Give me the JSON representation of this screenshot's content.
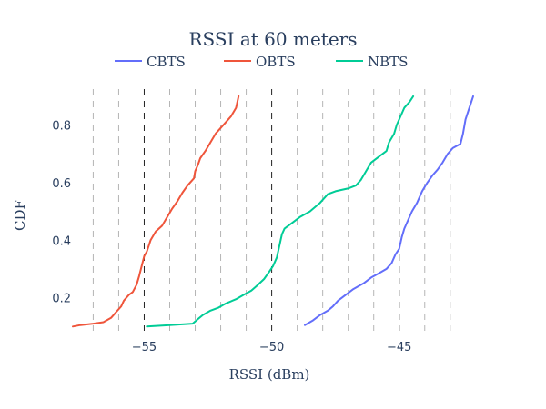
{
  "chart_data": {
    "type": "line",
    "title": "RSSI at 60 meters",
    "xlabel": "RSSI (dBm)",
    "ylabel": "CDF",
    "xlim": [
      -57.8,
      -42.1
    ],
    "ylim": [
      0.085,
      0.925
    ],
    "x_ticks": [
      -55,
      -50,
      -45
    ],
    "x_tick_labels": [
      "−55",
      "−50",
      "−45"
    ],
    "y_ticks": [
      0.2,
      0.4,
      0.6,
      0.8
    ],
    "y_tick_labels": [
      "0.2",
      "0.4",
      "0.6",
      "0.8"
    ],
    "grid": false,
    "vertical_reference_lines": {
      "dashed_black": [
        -55,
        -50,
        -45
      ],
      "dashed_gray": [
        -57,
        -56,
        -54,
        -53,
        -52,
        -51,
        -49,
        -48,
        -47,
        -46,
        -44,
        -43
      ]
    },
    "legend_position": "top-center",
    "series": [
      {
        "name": "CBTS",
        "color": "#636efa",
        "points": [
          [
            -48.7,
            0.105
          ],
          [
            -48.4,
            0.12
          ],
          [
            -48.1,
            0.14
          ],
          [
            -47.8,
            0.155
          ],
          [
            -47.6,
            0.17
          ],
          [
            -47.4,
            0.19
          ],
          [
            -47.1,
            0.21
          ],
          [
            -46.8,
            0.23
          ],
          [
            -46.4,
            0.25
          ],
          [
            -46.1,
            0.27
          ],
          [
            -45.8,
            0.285
          ],
          [
            -45.5,
            0.3
          ],
          [
            -45.3,
            0.32
          ],
          [
            -45.15,
            0.35
          ],
          [
            -45.0,
            0.37
          ],
          [
            -44.9,
            0.41
          ],
          [
            -44.8,
            0.44
          ],
          [
            -44.65,
            0.47
          ],
          [
            -44.5,
            0.5
          ],
          [
            -44.3,
            0.53
          ],
          [
            -44.1,
            0.57
          ],
          [
            -43.9,
            0.6
          ],
          [
            -43.7,
            0.625
          ],
          [
            -43.5,
            0.645
          ],
          [
            -43.3,
            0.67
          ],
          [
            -43.1,
            0.7
          ],
          [
            -42.9,
            0.72
          ],
          [
            -42.6,
            0.735
          ],
          [
            -42.5,
            0.77
          ],
          [
            -42.4,
            0.82
          ],
          [
            -42.25,
            0.86
          ],
          [
            -42.1,
            0.9
          ]
        ]
      },
      {
        "name": "OBTS",
        "color": "#ef553b",
        "points": [
          [
            -57.8,
            0.1
          ],
          [
            -57.5,
            0.105
          ],
          [
            -57.0,
            0.11
          ],
          [
            -56.6,
            0.115
          ],
          [
            -56.3,
            0.13
          ],
          [
            -56.1,
            0.15
          ],
          [
            -55.9,
            0.17
          ],
          [
            -55.8,
            0.19
          ],
          [
            -55.6,
            0.21
          ],
          [
            -55.45,
            0.22
          ],
          [
            -55.3,
            0.245
          ],
          [
            -55.2,
            0.275
          ],
          [
            -55.1,
            0.31
          ],
          [
            -55.0,
            0.345
          ],
          [
            -54.9,
            0.36
          ],
          [
            -54.75,
            0.4
          ],
          [
            -54.55,
            0.43
          ],
          [
            -54.3,
            0.45
          ],
          [
            -54.1,
            0.48
          ],
          [
            -53.9,
            0.51
          ],
          [
            -53.7,
            0.535
          ],
          [
            -53.5,
            0.565
          ],
          [
            -53.3,
            0.59
          ],
          [
            -53.05,
            0.615
          ],
          [
            -53.0,
            0.64
          ],
          [
            -52.9,
            0.66
          ],
          [
            -52.8,
            0.685
          ],
          [
            -52.6,
            0.71
          ],
          [
            -52.4,
            0.74
          ],
          [
            -52.2,
            0.77
          ],
          [
            -52.0,
            0.79
          ],
          [
            -51.8,
            0.81
          ],
          [
            -51.6,
            0.83
          ],
          [
            -51.4,
            0.86
          ],
          [
            -51.3,
            0.9
          ]
        ]
      },
      {
        "name": "NBTS",
        "color": "#00cc96",
        "points": [
          [
            -54.9,
            0.1
          ],
          [
            -54.0,
            0.105
          ],
          [
            -53.1,
            0.11
          ],
          [
            -52.9,
            0.125
          ],
          [
            -52.7,
            0.14
          ],
          [
            -52.4,
            0.155
          ],
          [
            -52.1,
            0.165
          ],
          [
            -51.8,
            0.18
          ],
          [
            -51.4,
            0.195
          ],
          [
            -51.1,
            0.21
          ],
          [
            -50.8,
            0.225
          ],
          [
            -50.6,
            0.24
          ],
          [
            -50.3,
            0.265
          ],
          [
            -50.1,
            0.29
          ],
          [
            -49.95,
            0.31
          ],
          [
            -49.8,
            0.34
          ],
          [
            -49.7,
            0.38
          ],
          [
            -49.6,
            0.42
          ],
          [
            -49.5,
            0.44
          ],
          [
            -49.2,
            0.46
          ],
          [
            -48.9,
            0.48
          ],
          [
            -48.5,
            0.5
          ],
          [
            -48.1,
            0.53
          ],
          [
            -47.8,
            0.56
          ],
          [
            -47.5,
            0.57
          ],
          [
            -47.0,
            0.58
          ],
          [
            -46.7,
            0.59
          ],
          [
            -46.5,
            0.61
          ],
          [
            -46.3,
            0.64
          ],
          [
            -46.1,
            0.67
          ],
          [
            -45.8,
            0.69
          ],
          [
            -45.5,
            0.71
          ],
          [
            -45.4,
            0.74
          ],
          [
            -45.2,
            0.77
          ],
          [
            -45.1,
            0.8
          ],
          [
            -44.95,
            0.83
          ],
          [
            -44.8,
            0.86
          ],
          [
            -44.6,
            0.88
          ],
          [
            -44.45,
            0.9
          ]
        ]
      }
    ]
  }
}
